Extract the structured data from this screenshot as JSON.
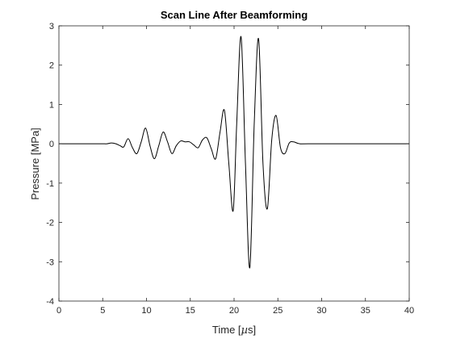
{
  "chart_data": {
    "type": "line",
    "title": "Scan Line After Beamforming",
    "xlabel_prefix": "Time [",
    "xlabel_unit": "µ",
    "xlabel_suffix": "s]",
    "ylabel": "Pressure [MPa]",
    "xlim": [
      0,
      40
    ],
    "ylim": [
      -4,
      3
    ],
    "xticks": [
      0,
      5,
      10,
      15,
      20,
      25,
      30,
      35,
      40
    ],
    "yticks": [
      -4,
      -3,
      -2,
      -1,
      0,
      1,
      2,
      3
    ],
    "grid": false,
    "line_color": "#000000",
    "axis_color": "#262626",
    "series": [
      {
        "x": [
          0,
          4,
          5,
          5.5,
          6,
          6.5,
          7,
          7.4,
          7.9,
          8.4,
          8.9,
          9.4,
          9.9,
          10.4,
          10.9,
          11.4,
          11.9,
          12.4,
          12.9,
          13.4,
          13.9,
          14.4,
          14.9,
          15.4,
          15.9,
          16.4,
          16.9,
          17.4,
          17.9,
          18.4,
          18.9,
          19.4,
          19.9,
          20.3,
          20.8,
          21.3,
          21.8,
          22.3,
          22.8,
          23.3,
          23.8,
          24.3,
          24.8,
          25.3,
          25.8,
          26.3,
          26.8,
          27.5,
          29,
          40
        ],
        "y": [
          0,
          0,
          0,
          0,
          0.02,
          0,
          -0.05,
          -0.08,
          0.13,
          -0.1,
          -0.25,
          0.05,
          0.4,
          -0.05,
          -0.38,
          -0.05,
          0.3,
          0.05,
          -0.25,
          -0.05,
          0.07,
          0.05,
          0.05,
          -0.03,
          -0.1,
          0.1,
          0.15,
          -0.13,
          -0.38,
          0.3,
          0.85,
          -0.5,
          -1.7,
          0.5,
          2.72,
          -0.5,
          -3.15,
          0.5,
          2.67,
          -0.5,
          -1.65,
          0.1,
          0.72,
          -0.1,
          -0.25,
          0.02,
          0.05,
          0,
          0,
          0
        ]
      }
    ]
  }
}
